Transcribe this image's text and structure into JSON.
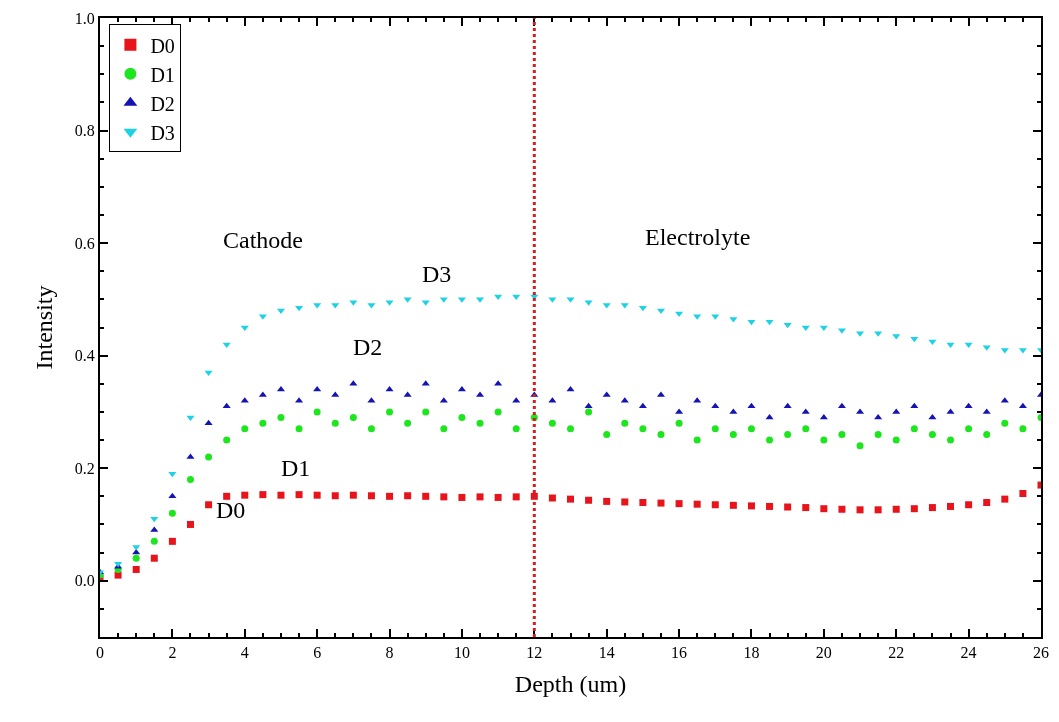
{
  "chart_data": {
    "type": "scatter",
    "xlabel": "Depth (um)",
    "ylabel": "Intensity",
    "x": [
      0,
      0.5,
      1,
      1.5,
      2,
      2.5,
      3,
      3.5,
      4,
      4.5,
      5,
      5.5,
      6,
      6.5,
      7,
      7.5,
      8,
      8.5,
      9,
      9.5,
      10,
      10.5,
      11,
      11.5,
      12,
      12.5,
      13,
      13.5,
      14,
      14.5,
      15,
      15.5,
      16,
      16.5,
      17,
      17.5,
      18,
      18.5,
      19,
      19.5,
      20,
      20.5,
      21,
      21.5,
      22,
      22.5,
      23,
      23.5,
      24,
      24.5,
      25,
      25.5,
      26
    ],
    "series": [
      {
        "name": "D0",
        "color": "#e8141c",
        "marker": "square",
        "values": [
          0.005,
          0.01,
          0.02,
          0.04,
          0.07,
          0.1,
          0.135,
          0.15,
          0.152,
          0.153,
          0.152,
          0.153,
          0.152,
          0.151,
          0.152,
          0.151,
          0.15,
          0.151,
          0.15,
          0.149,
          0.148,
          0.149,
          0.148,
          0.149,
          0.15,
          0.147,
          0.145,
          0.143,
          0.141,
          0.14,
          0.139,
          0.138,
          0.137,
          0.136,
          0.135,
          0.134,
          0.133,
          0.132,
          0.131,
          0.13,
          0.128,
          0.127,
          0.126,
          0.126,
          0.127,
          0.128,
          0.13,
          0.132,
          0.135,
          0.139,
          0.145,
          0.155,
          0.17
        ]
      },
      {
        "name": "D1",
        "color": "#1ee61e",
        "marker": "circle",
        "values": [
          0.01,
          0.02,
          0.04,
          0.07,
          0.12,
          0.18,
          0.22,
          0.25,
          0.27,
          0.28,
          0.29,
          0.27,
          0.3,
          0.28,
          0.29,
          0.27,
          0.3,
          0.28,
          0.3,
          0.27,
          0.29,
          0.28,
          0.3,
          0.27,
          0.29,
          0.28,
          0.27,
          0.3,
          0.26,
          0.28,
          0.27,
          0.26,
          0.28,
          0.25,
          0.27,
          0.26,
          0.27,
          0.25,
          0.26,
          0.27,
          0.25,
          0.26,
          0.24,
          0.26,
          0.25,
          0.27,
          0.26,
          0.25,
          0.27,
          0.26,
          0.28,
          0.27,
          0.29
        ]
      },
      {
        "name": "D2",
        "color": "#1414b4",
        "marker": "triangle",
        "values": [
          0.015,
          0.025,
          0.05,
          0.09,
          0.15,
          0.22,
          0.28,
          0.31,
          0.32,
          0.33,
          0.34,
          0.32,
          0.34,
          0.33,
          0.35,
          0.32,
          0.34,
          0.33,
          0.35,
          0.32,
          0.34,
          0.33,
          0.35,
          0.32,
          0.33,
          0.32,
          0.34,
          0.31,
          0.33,
          0.32,
          0.31,
          0.33,
          0.3,
          0.32,
          0.31,
          0.3,
          0.31,
          0.29,
          0.31,
          0.3,
          0.29,
          0.31,
          0.3,
          0.29,
          0.3,
          0.31,
          0.29,
          0.3,
          0.31,
          0.3,
          0.32,
          0.31,
          0.33
        ]
      },
      {
        "name": "D3",
        "color": "#1ed2e6",
        "marker": "triangle",
        "values": [
          0.015,
          0.03,
          0.06,
          0.11,
          0.19,
          0.29,
          0.37,
          0.42,
          0.45,
          0.47,
          0.48,
          0.485,
          0.49,
          0.49,
          0.495,
          0.49,
          0.495,
          0.5,
          0.495,
          0.5,
          0.5,
          0.5,
          0.505,
          0.505,
          0.505,
          0.5,
          0.5,
          0.495,
          0.49,
          0.49,
          0.485,
          0.48,
          0.475,
          0.47,
          0.47,
          0.465,
          0.46,
          0.46,
          0.455,
          0.45,
          0.45,
          0.445,
          0.44,
          0.44,
          0.435,
          0.43,
          0.425,
          0.42,
          0.42,
          0.415,
          0.41,
          0.41,
          0.41
        ]
      }
    ],
    "xlim": [
      0,
      26
    ],
    "xticks": [
      0,
      2,
      4,
      6,
      8,
      10,
      12,
      14,
      16,
      18,
      20,
      22,
      24,
      26
    ],
    "ylim": [
      -0.1,
      1.0
    ],
    "yticks": [
      {
        "value": 0,
        "label": "0.0"
      },
      {
        "value": 0.2,
        "label": "0.2"
      },
      {
        "value": 0.4,
        "label": "0.4"
      },
      {
        "value": 0.6,
        "label": "0.6"
      },
      {
        "value": 0.8,
        "label": "0.8"
      },
      {
        "value": 1.0,
        "label": "1.0"
      }
    ],
    "ref_lines": [
      {
        "axis": "x",
        "value": 12,
        "color": "#d02020",
        "line_style": "dotted"
      }
    ],
    "annotations": [
      "Cathode",
      "Electrolyte",
      "D3",
      "D2",
      "D1",
      "D0"
    ],
    "legend": "top left"
  }
}
